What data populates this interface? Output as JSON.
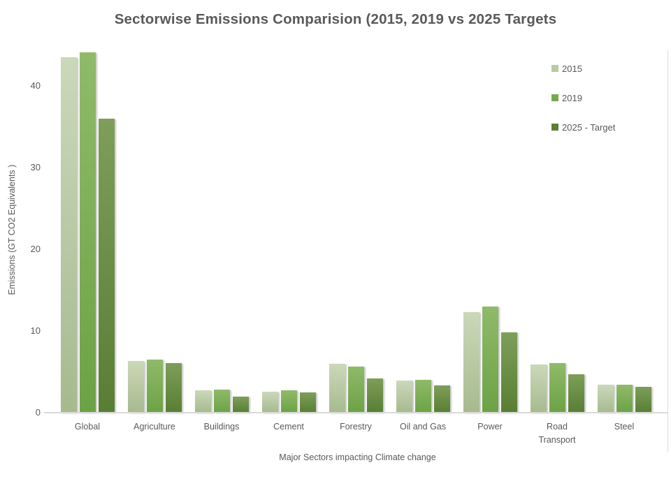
{
  "title": "Sectorwise Emissions Comparision (2015, 2019 vs 2025 Targets",
  "chart_data": {
    "type": "bar",
    "title": "Sectorwise Emissions Comparision (2015, 2019 vs 2025 Targets",
    "xlabel": "Major Sectors impacting Climate change",
    "ylabel": "Emissions (GT CO2 Equivalents )",
    "categories": [
      "Global",
      "Agriculture",
      "Buildings",
      "Cement",
      "Forestry",
      "Oil and Gas",
      "Power",
      "Road Transport",
      "Steel"
    ],
    "series": [
      {
        "name": "2015",
        "values": [
          43.5,
          6.3,
          2.7,
          2.6,
          6.0,
          3.9,
          12.3,
          5.9,
          3.4
        ],
        "color_top": "#cbd8ba",
        "color_bottom": "#a6ba8e",
        "legend_color": "#bccaa4"
      },
      {
        "name": "2019",
        "values": [
          44.1,
          6.5,
          2.8,
          2.7,
          5.6,
          4.0,
          13.0,
          6.1,
          3.4
        ],
        "color_top": "#90ba6a",
        "color_bottom": "#6ca245",
        "legend_color": "#77aa4c"
      },
      {
        "name": "2025 - Target",
        "values": [
          36.0,
          6.1,
          2.0,
          2.5,
          4.2,
          3.3,
          9.8,
          4.7,
          3.2
        ],
        "color_top": "#7e9e5a",
        "color_bottom": "#587e33",
        "legend_color": "#5a7e35"
      }
    ],
    "yticks": [
      0,
      10,
      20,
      30,
      40
    ],
    "ylim": [
      0,
      45
    ],
    "grid": false,
    "legend_position": "top-right",
    "text_color": "#595959",
    "axis_line_color": "#d9d9d9"
  }
}
